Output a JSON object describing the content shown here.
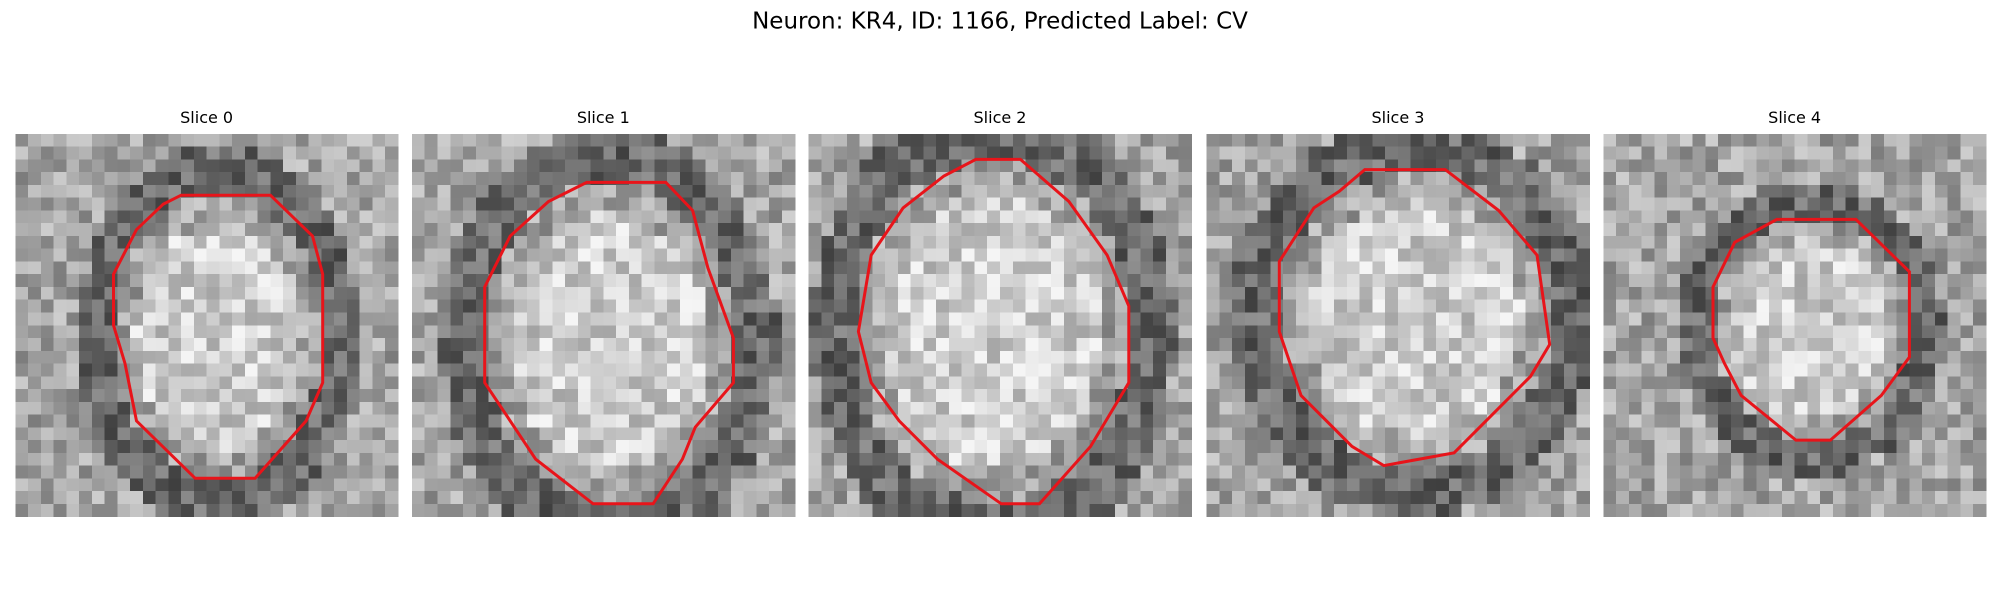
{
  "figure": {
    "title": "Neuron: KR4, ID: 1166, Predicted Label: CV",
    "panels": [
      {
        "title": "Slice 0"
      },
      {
        "title": "Slice 1"
      },
      {
        "title": "Slice 2"
      },
      {
        "title": "Slice 3"
      },
      {
        "title": "Slice 4"
      }
    ]
  }
}
